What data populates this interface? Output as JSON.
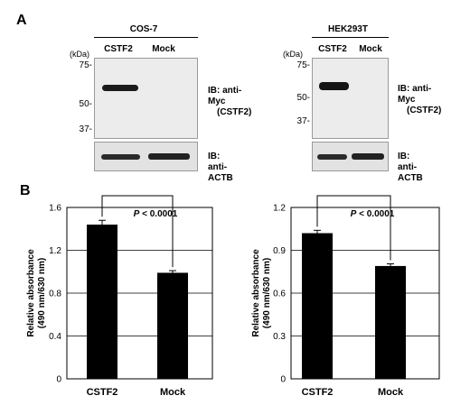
{
  "panel_a": {
    "label": "A",
    "blots": [
      {
        "cell_line": "COS-7",
        "kda_unit": "(kDa)",
        "lanes": [
          "CSTF2",
          "Mock"
        ],
        "markers": [
          "75-",
          "50-",
          "37-"
        ],
        "ib_myc_line1": "IB: anti-Myc",
        "ib_myc_line2": "(CSTF2)",
        "ib_actb": "IB: anti-ACTB"
      },
      {
        "cell_line": "HEK293T",
        "kda_unit": "(kDa)",
        "lanes": [
          "CSTF2",
          "Mock"
        ],
        "markers": [
          "75-",
          "50-",
          "37-"
        ],
        "ib_myc_line1": "IB: anti-Myc",
        "ib_myc_line2": "(CSTF2)",
        "ib_actb": "IB: anti-ACTB"
      }
    ]
  },
  "panel_b": {
    "label": "B"
  },
  "chart_data": [
    {
      "type": "bar",
      "categories": [
        "CSTF2",
        "Mock"
      ],
      "values": [
        1.44,
        0.99
      ],
      "errors": [
        0.04,
        0.02
      ],
      "ylabel_line1": "Relative absorbance",
      "ylabel_line2": "(490 nm/630 nm)",
      "ylim": [
        0,
        1.6
      ],
      "yticks": [
        "0",
        "0.4",
        "0.8",
        "1.2",
        "1.6"
      ],
      "grid": true,
      "significance": {
        "p_symbol": "P",
        "p_rest": " < 0.0001"
      }
    },
    {
      "type": "bar",
      "categories": [
        "CSTF2",
        "Mock"
      ],
      "values": [
        1.02,
        0.79
      ],
      "errors": [
        0.02,
        0.015
      ],
      "ylabel_line1": "Relative absorbance",
      "ylabel_line2": "(490 nm/630 nm)",
      "ylim": [
        0,
        1.2
      ],
      "yticks": [
        "0",
        "0.3",
        "0.6",
        "0.9",
        "1.2"
      ],
      "grid": true,
      "significance": {
        "p_symbol": "P",
        "p_rest": " < 0.0001"
      }
    }
  ]
}
